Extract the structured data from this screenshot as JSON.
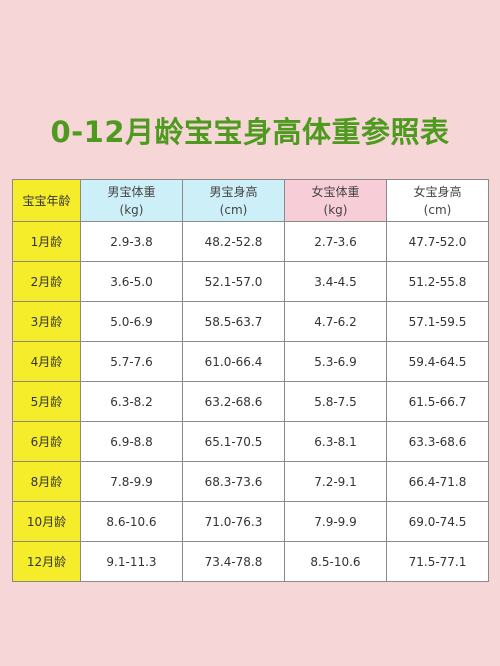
{
  "title": "0-12月龄宝宝身高体重参照表",
  "headers": {
    "age": "宝宝年龄",
    "male_weight": "男宝体重",
    "male_weight_unit": "(kg)",
    "male_height": "男宝身高",
    "male_height_unit": "(cm)",
    "female_weight": "女宝体重",
    "female_weight_unit": "(kg)",
    "female_height": "女宝身高",
    "female_height_unit": "(cm)"
  },
  "colors": {
    "background": "#f6d6d6",
    "title": "#4e9a1f",
    "age_column": "#f5ec2a",
    "male_header": "#cdeff7",
    "female_header": "#f7cdd8"
  },
  "rows": [
    {
      "age": "1月龄",
      "male_weight": "2.9-3.8",
      "male_height": "48.2-52.8",
      "female_weight": "2.7-3.6",
      "female_height": "47.7-52.0"
    },
    {
      "age": "2月龄",
      "male_weight": "3.6-5.0",
      "male_height": "52.1-57.0",
      "female_weight": "3.4-4.5",
      "female_height": "51.2-55.8"
    },
    {
      "age": "3月龄",
      "male_weight": "5.0-6.9",
      "male_height": "58.5-63.7",
      "female_weight": "4.7-6.2",
      "female_height": "57.1-59.5"
    },
    {
      "age": "4月龄",
      "male_weight": "5.7-7.6",
      "male_height": "61.0-66.4",
      "female_weight": "5.3-6.9",
      "female_height": "59.4-64.5"
    },
    {
      "age": "5月龄",
      "male_weight": "6.3-8.2",
      "male_height": "63.2-68.6",
      "female_weight": "5.8-7.5",
      "female_height": "61.5-66.7"
    },
    {
      "age": "6月龄",
      "male_weight": "6.9-8.8",
      "male_height": "65.1-70.5",
      "female_weight": "6.3-8.1",
      "female_height": "63.3-68.6"
    },
    {
      "age": "8月龄",
      "male_weight": "7.8-9.9",
      "male_height": "68.3-73.6",
      "female_weight": "7.2-9.1",
      "female_height": "66.4-71.8"
    },
    {
      "age": "10月龄",
      "male_weight": "8.6-10.6",
      "male_height": "71.0-76.3",
      "female_weight": "7.9-9.9",
      "female_height": "69.0-74.5"
    },
    {
      "age": "12月龄",
      "male_weight": "9.1-11.3",
      "male_height": "73.4-78.8",
      "female_weight": "8.5-10.6",
      "female_height": "71.5-77.1"
    }
  ]
}
